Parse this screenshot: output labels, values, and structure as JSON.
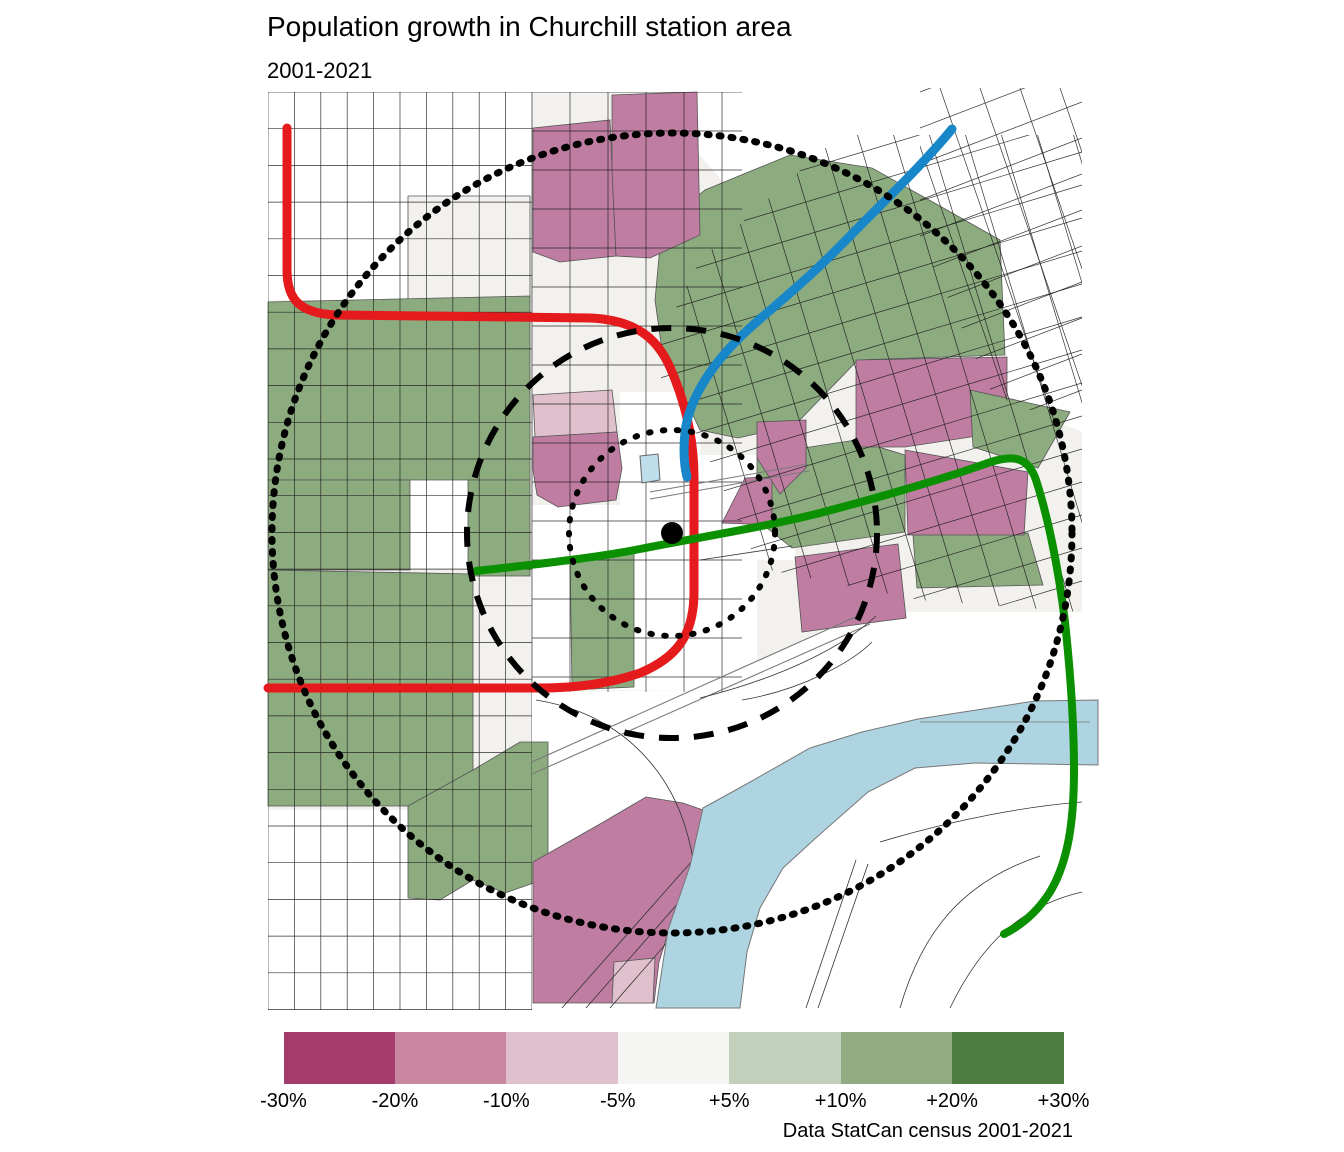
{
  "header": {
    "title": "Population growth in Churchill station area",
    "subtitle": "2001-2021"
  },
  "caption": "Data StatCan census 2001-2021",
  "legend": {
    "labels": [
      "-30%",
      "-20%",
      "-10%",
      "-5%",
      "+5%",
      "+10%",
      "+20%",
      "+30%"
    ],
    "colors": [
      "#a33c6b",
      "#c9869f",
      "#dfc0cc",
      "#f5f5f4",
      "#c2cfba",
      "#91ac82",
      "#4c7c40"
    ]
  },
  "map": {
    "colors": {
      "magenta": "#bf7da1",
      "light_pink": "#dfc0cc",
      "green": "#8cab7f",
      "pale_green": "#c2cfba",
      "off_white": "#f2f1ee",
      "white": "#ffffff",
      "river": "#aed4e2",
      "pool": "#bfdeec",
      "street": "#1c1c1c",
      "street_major": "#7a7a7a",
      "poly_stroke": "#555555",
      "red_line": "#e41a1c",
      "blue_line": "#1787c9",
      "green_line": "#0a9000",
      "ring": "#000000"
    }
  }
}
